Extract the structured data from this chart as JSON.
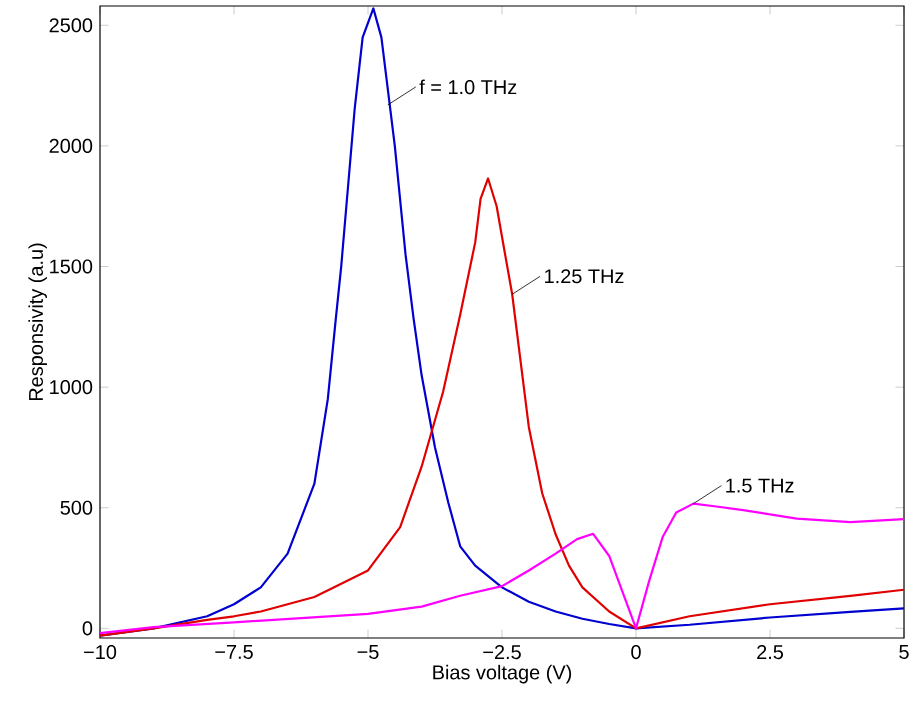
{
  "chart_data": {
    "type": "line",
    "xlabel": "Bias voltage (V)",
    "ylabel": "Responsivity (a.u)",
    "xlim": [
      -10,
      5
    ],
    "ylim": [
      -40,
      2580
    ],
    "xticks": [
      {
        "value": -10,
        "label": "−10"
      },
      {
        "value": -7.5,
        "label": "−7.5"
      },
      {
        "value": -5,
        "label": "−5"
      },
      {
        "value": -2.5,
        "label": "−2.5"
      },
      0,
      2.5,
      5
    ],
    "yticks": [
      0,
      500,
      1000,
      1500,
      2000,
      2500
    ],
    "series": [
      {
        "color": "#0000d0",
        "x": [
          -10,
          -9,
          -8,
          -7.5,
          -7,
          -6.5,
          -6,
          -5.75,
          -5.6,
          -5.5,
          -5.25,
          -5.1,
          -4.9,
          -4.75,
          -4.5,
          -4.3,
          -4.15,
          -4,
          -3.75,
          -3.5,
          -3.28,
          -3,
          -2.5,
          -2,
          -1.5,
          -1,
          -0.5,
          0,
          1,
          2.5,
          4,
          5
        ],
        "values": [
          -30,
          0,
          50,
          100,
          170,
          310,
          600,
          950,
          1285,
          1500,
          2150,
          2450,
          2570,
          2450,
          2000,
          1550,
          1285,
          1050,
          750,
          520,
          340,
          260,
          170,
          110,
          70,
          40,
          18,
          0,
          15,
          45,
          68,
          83
        ]
      },
      {
        "color": "#e00000",
        "x": [
          -10,
          -9,
          -8,
          -7.5,
          -7,
          -6,
          -5,
          -4.4,
          -4,
          -3.6,
          -3.28,
          -3,
          -2.9,
          -2.76,
          -2.6,
          -2.45,
          -2.31,
          -2,
          -1.75,
          -1.5,
          -1.25,
          -1,
          -0.5,
          0,
          1,
          2.5,
          4,
          5
        ],
        "values": [
          -30,
          0,
          35,
          50,
          70,
          130,
          240,
          420,
          670,
          980,
          1300,
          1600,
          1780,
          1865,
          1750,
          1560,
          1385,
          835,
          560,
          390,
          260,
          170,
          70,
          0,
          50,
          100,
          135,
          160
        ]
      },
      {
        "color": "#ff00ff",
        "x": [
          -10,
          -9,
          -7.5,
          -5,
          -4,
          -3.28,
          -2.5,
          -2,
          -1.5,
          -1.1,
          -0.8,
          -0.5,
          -0.25,
          0,
          0.25,
          0.5,
          0.75,
          1.07,
          1.5,
          2,
          3,
          4,
          5
        ],
        "values": [
          -20,
          5,
          25,
          60,
          90,
          135,
          175,
          240,
          310,
          370,
          392,
          300,
          150,
          0,
          200,
          380,
          480,
          517,
          505,
          490,
          455,
          440,
          453
        ]
      }
    ],
    "annotations": [
      {
        "text": "f = 1.0 THz",
        "x": -4.63,
        "y": 2170
      },
      {
        "text": "1.25 THz",
        "x": -2.31,
        "y": 1385
      },
      {
        "text": "1.5 THz",
        "x": 1.07,
        "y": 517
      }
    ]
  }
}
